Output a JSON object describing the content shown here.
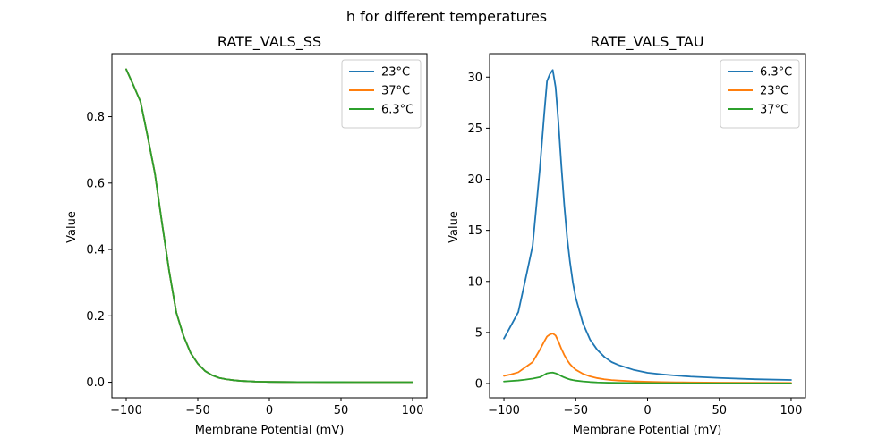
{
  "figure": {
    "suptitle": "h for different temperatures"
  },
  "chart_data": [
    {
      "type": "line",
      "title": "RATE_VALS_SS",
      "xlabel": "Membrane Potential (mV)",
      "ylabel": "Value",
      "xlim": [
        -110,
        110
      ],
      "ylim": [
        -0.047,
        0.99
      ],
      "xticks": [
        -100,
        -50,
        0,
        50,
        100
      ],
      "xtick_labels": [
        "−100",
        "−50",
        "0",
        "50",
        "100"
      ],
      "yticks": [
        0.0,
        0.2,
        0.4,
        0.6,
        0.8
      ],
      "ytick_labels": [
        "0.0",
        "0.2",
        "0.4",
        "0.6",
        "0.8"
      ],
      "legend_position": "top-right",
      "x": [
        -100,
        -95,
        -90,
        -85,
        -80,
        -75,
        -70,
        -65,
        -60,
        -55,
        -50,
        -45,
        -40,
        -35,
        -30,
        -25,
        -20,
        -15,
        -10,
        -5,
        0,
        10,
        20,
        30,
        40,
        50,
        60,
        70,
        80,
        90,
        100
      ],
      "series": [
        {
          "name": "23°C",
          "color": "#1f77b4",
          "values": [
            0.943,
            0.895,
            0.845,
            0.74,
            0.63,
            0.48,
            0.335,
            0.21,
            0.14,
            0.088,
            0.056,
            0.034,
            0.021,
            0.013,
            0.009,
            0.006,
            0.004,
            0.003,
            0.002,
            0.0015,
            0.001,
            0.0007,
            0.0005,
            0.0004,
            0.0003,
            0.0003,
            0.0002,
            0.0002,
            0.0002,
            0.0002,
            0.0002
          ]
        },
        {
          "name": "37°C",
          "color": "#ff7f0e",
          "values": [
            0.943,
            0.895,
            0.845,
            0.74,
            0.63,
            0.48,
            0.335,
            0.21,
            0.14,
            0.088,
            0.056,
            0.034,
            0.021,
            0.013,
            0.009,
            0.006,
            0.004,
            0.003,
            0.002,
            0.0015,
            0.001,
            0.0007,
            0.0005,
            0.0004,
            0.0003,
            0.0003,
            0.0002,
            0.0002,
            0.0002,
            0.0002,
            0.0002
          ]
        },
        {
          "name": "6.3°C",
          "color": "#2ca02c",
          "values": [
            0.943,
            0.895,
            0.845,
            0.74,
            0.63,
            0.48,
            0.335,
            0.21,
            0.14,
            0.088,
            0.056,
            0.034,
            0.021,
            0.013,
            0.009,
            0.006,
            0.004,
            0.003,
            0.002,
            0.0015,
            0.001,
            0.0007,
            0.0005,
            0.0004,
            0.0003,
            0.0003,
            0.0002,
            0.0002,
            0.0002,
            0.0002,
            0.0002
          ]
        }
      ]
    },
    {
      "type": "line",
      "title": "RATE_VALS_TAU",
      "xlabel": "Membrane Potential (mV)",
      "ylabel": "Value",
      "xlim": [
        -110,
        110
      ],
      "ylim": [
        -1.4,
        32.3
      ],
      "xticks": [
        -100,
        -50,
        0,
        50,
        100
      ],
      "xtick_labels": [
        "−100",
        "−50",
        "0",
        "50",
        "100"
      ],
      "yticks": [
        0,
        5,
        10,
        15,
        20,
        25,
        30
      ],
      "ytick_labels": [
        "0",
        "5",
        "10",
        "15",
        "20",
        "25",
        "30"
      ],
      "legend_position": "top-right",
      "x": [
        -100,
        -95,
        -90,
        -85,
        -80,
        -75,
        -72,
        -70,
        -68,
        -66,
        -64,
        -62,
        -60,
        -58,
        -56,
        -54,
        -52,
        -50,
        -45,
        -40,
        -35,
        -30,
        -25,
        -20,
        -10,
        0,
        10,
        20,
        30,
        50,
        75,
        100
      ],
      "series": [
        {
          "name": "6.3°C",
          "color": "#1f77b4",
          "values": [
            4.4,
            5.7,
            7.0,
            10.2,
            13.5,
            21.0,
            26.3,
            29.6,
            30.3,
            30.7,
            29.0,
            25.5,
            21.3,
            17.5,
            14.3,
            11.9,
            9.9,
            8.4,
            5.9,
            4.3,
            3.3,
            2.6,
            2.1,
            1.8,
            1.35,
            1.05,
            0.9,
            0.78,
            0.68,
            0.55,
            0.42,
            0.35
          ]
        },
        {
          "name": "23°C",
          "color": "#ff7f0e",
          "values": [
            0.75,
            0.9,
            1.1,
            1.6,
            2.1,
            3.3,
            4.1,
            4.6,
            4.8,
            4.9,
            4.7,
            4.1,
            3.4,
            2.8,
            2.3,
            1.9,
            1.6,
            1.35,
            0.95,
            0.7,
            0.53,
            0.42,
            0.34,
            0.29,
            0.22,
            0.17,
            0.14,
            0.12,
            0.11,
            0.09,
            0.07,
            0.06
          ]
        },
        {
          "name": "37°C",
          "color": "#2ca02c",
          "values": [
            0.2,
            0.25,
            0.3,
            0.38,
            0.48,
            0.62,
            0.85,
            1.0,
            1.05,
            1.07,
            1.0,
            0.88,
            0.73,
            0.6,
            0.49,
            0.4,
            0.34,
            0.29,
            0.21,
            0.15,
            0.11,
            0.09,
            0.07,
            0.06,
            0.05,
            0.04,
            0.03,
            0.03,
            0.02,
            0.02,
            0.015,
            0.013
          ]
        }
      ]
    }
  ]
}
